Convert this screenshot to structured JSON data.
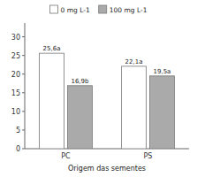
{
  "chart_data": {
    "type": "bar",
    "categories": [
      "PC",
      "PS"
    ],
    "series": [
      {
        "name": "0 mg L-1",
        "color": "#FFFFFF",
        "values": [
          25.6,
          22.1
        ],
        "value_labels": [
          "25,6a",
          "22,1a"
        ]
      },
      {
        "name": "100 mg L-1",
        "color": "#AAAAAA",
        "values": [
          16.9,
          19.5
        ],
        "value_labels": [
          "16,9b",
          "19,5a"
        ]
      }
    ],
    "xlabel": "Origem das sementes",
    "ylim": [
      0,
      33.7
    ],
    "yticks": [
      0,
      5,
      10,
      15,
      20,
      25,
      30
    ],
    "data_labels": true,
    "legend": "top"
  }
}
